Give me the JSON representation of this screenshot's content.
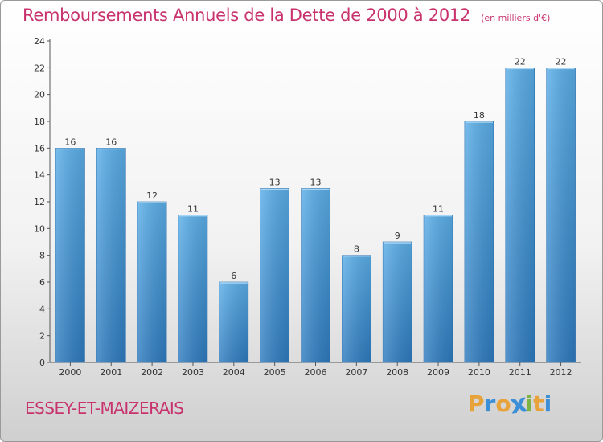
{
  "header": {
    "title": "Remboursements Annuels de la Dette de 2000 à 2012",
    "unit_note": "(en milliers d'€)"
  },
  "footer": {
    "commune": "ESSEY-ET-MAIZERAIS",
    "logo": "Proxiti",
    "logo_colors": [
      "#e8a23a",
      "#3a8fd6",
      "#e8a23a",
      "#3a8fd6",
      "#7cb342",
      "#e8a23a",
      "#3a8fd6"
    ]
  },
  "colors": {
    "title": "#c8336e",
    "bar_top": "#5aaee8",
    "bar_bottom": "#2e7bbf"
  },
  "chart_data": {
    "type": "bar",
    "categories": [
      "2000",
      "2001",
      "2002",
      "2003",
      "2004",
      "2005",
      "2006",
      "2007",
      "2008",
      "2009",
      "2010",
      "2011",
      "2012"
    ],
    "values": [
      16,
      16,
      12,
      11,
      6,
      13,
      13,
      8,
      9,
      11,
      18,
      22,
      22
    ],
    "data_labels": [
      "16",
      "16",
      "12",
      "11",
      "6",
      "13",
      "13",
      "8",
      "9",
      "11",
      "18",
      "22",
      "22"
    ],
    "ylim": [
      0,
      24
    ],
    "yticks": [
      0,
      2,
      4,
      6,
      8,
      10,
      12,
      14,
      16,
      18,
      20,
      22,
      24
    ],
    "ytick_labels": [
      "0",
      "2",
      "4",
      "6",
      "8",
      "10",
      "12",
      "14",
      "16",
      "18",
      "20",
      "22",
      "24"
    ],
    "grid": false,
    "legend": "none"
  }
}
